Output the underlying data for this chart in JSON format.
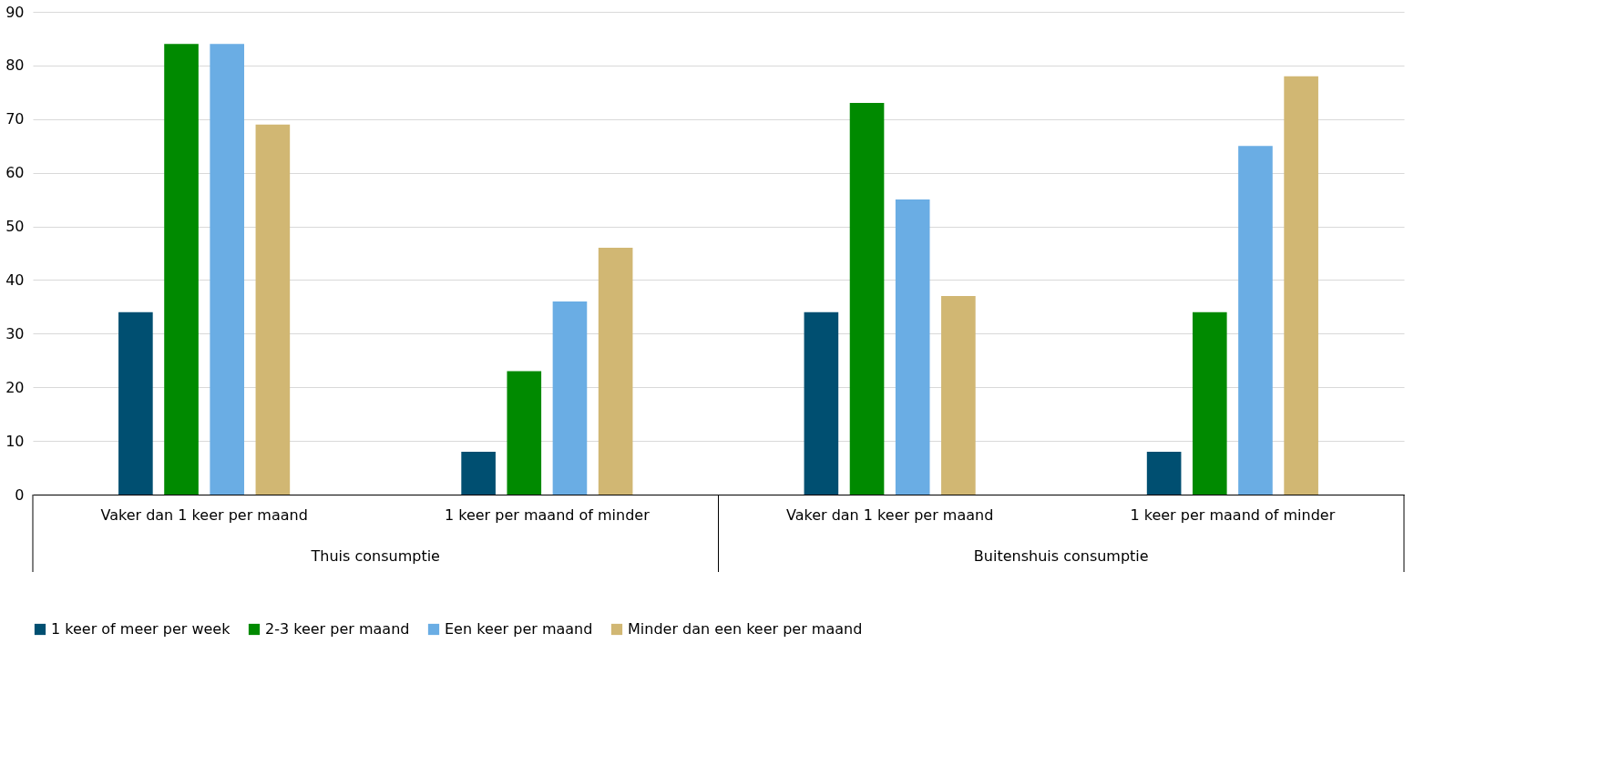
{
  "chart_data": {
    "type": "bar",
    "categories": [
      "Vaker dan 1 keer per maand",
      "1 keer per maand of minder",
      "Vaker dan 1 keer per maand",
      "1 keer per maand of minder"
    ],
    "series": [
      {
        "name": "1 keer of meer per week",
        "color": "#004f71",
        "values": [
          34,
          8,
          34,
          8
        ]
      },
      {
        "name": "2-3 keer per maand",
        "color": "#008a00",
        "values": [
          84,
          23,
          73,
          34
        ]
      },
      {
        "name": "Een keer per maand",
        "color": "#6aade4",
        "values": [
          84,
          36,
          55,
          65
        ]
      },
      {
        "name": "Minder dan een keer per maand",
        "color": "#d1b773",
        "values": [
          69,
          46,
          37,
          78
        ]
      }
    ],
    "annotations": [
      "Thuis consumptie",
      "Buitenshuis consumptie"
    ],
    "ylim": [
      0,
      90
    ],
    "yticks": [
      0,
      10,
      20,
      30,
      40,
      50,
      60,
      70,
      80,
      90
    ],
    "grid": "y",
    "legend": "bottom"
  }
}
